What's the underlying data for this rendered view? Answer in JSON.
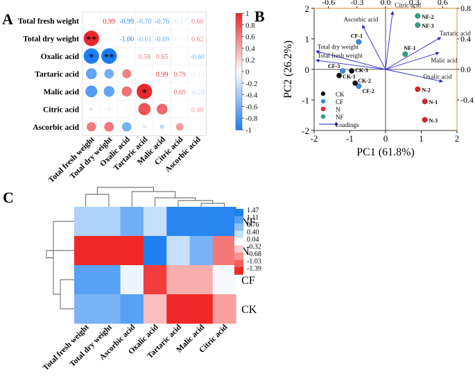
{
  "panels": {
    "a": "A",
    "b": "B",
    "c": "C"
  },
  "chart_data": [
    {
      "panel": "A",
      "type": "heatmap",
      "title": "",
      "variables": [
        "Total fresh weight",
        "Total dry weight",
        "Oxalic acid",
        "Tartaric acid",
        "Malic acid",
        "Citric acid",
        "Ascorbic acid"
      ],
      "correlations": [
        [
          null,
          0.99,
          -0.99,
          -0.7,
          -0.76,
          -0.17,
          0.6
        ],
        [
          0.99,
          null,
          -1.0,
          -0.61,
          -0.69,
          -0.069,
          0.62
        ],
        [
          -0.99,
          -1.0,
          null,
          0.58,
          0.65,
          0.031,
          -0.6
        ],
        [
          -0.7,
          -0.61,
          0.58,
          null,
          0.99,
          0.79,
          -0.14
        ],
        [
          -0.76,
          -0.69,
          0.65,
          0.99,
          null,
          0.69,
          -0.28
        ],
        [
          -0.17,
          -0.069,
          0.031,
          0.79,
          0.69,
          null,
          0.48
        ],
        [
          0.6,
          0.62,
          -0.6,
          -0.14,
          -0.28,
          0.48,
          null
        ]
      ],
      "upper_labels": [
        [
          null,
          "0.99",
          "-0.99",
          "-0.70",
          "-0.76",
          "-0.17",
          "0.60"
        ],
        [
          null,
          null,
          "-1.00",
          "-0.61",
          "-0.69",
          "-0.069",
          "0.62"
        ],
        [
          null,
          null,
          null,
          "0.58",
          "0.65",
          "0.031",
          "-0.60"
        ],
        [
          null,
          null,
          null,
          null,
          "0.99",
          "0.79",
          "-0.14"
        ],
        [
          null,
          null,
          null,
          null,
          null,
          "0.69",
          "-0.28"
        ],
        [
          null,
          null,
          null,
          null,
          null,
          null,
          "0.48"
        ],
        [
          null,
          null,
          null,
          null,
          null,
          null,
          null
        ]
      ],
      "significance": [
        [
          null,
          null,
          null,
          null,
          null,
          null,
          null
        ],
        [
          "**",
          null,
          null,
          null,
          null,
          null,
          null
        ],
        [
          "*",
          "**",
          null,
          null,
          null,
          null,
          null
        ],
        [
          null,
          null,
          null,
          null,
          null,
          null,
          null
        ],
        [
          null,
          null,
          null,
          "*",
          null,
          null,
          null
        ],
        [
          null,
          null,
          null,
          null,
          null,
          null,
          null
        ],
        [
          null,
          null,
          null,
          null,
          null,
          null,
          null
        ]
      ],
      "colorbar": {
        "range": [
          -1,
          1
        ],
        "ticks": [
          "1",
          "0.8",
          "0.6",
          "0.4",
          "0.2",
          "0",
          "-0.2",
          "-0.4",
          "-0.6",
          "-0.8",
          "-1"
        ]
      },
      "colors": {
        "positive": "#e8262b",
        "negative": "#1c7cf0",
        "neutral": "#ffffff"
      }
    },
    {
      "panel": "B",
      "type": "scatter",
      "xlabel": "PC1 (61.8%)",
      "ylabel": "PC2 (26.2%)",
      "xlim": [
        -2,
        2
      ],
      "ylim": [
        -2,
        2
      ],
      "x_ticks": [
        "-2",
        "-1",
        "0",
        "1",
        "2"
      ],
      "y_ticks": [
        "-2",
        "-1",
        "0",
        "1",
        "2"
      ],
      "top_ticks": [
        "-0.6",
        "-0.3",
        "0.0",
        "0.3",
        "0.6"
      ],
      "right_ticks": [
        "0.8",
        "0.4",
        "0.0",
        "-0.4"
      ],
      "points": [
        {
          "label": "CF-1",
          "x": -0.75,
          "y": 0.9,
          "group": "CF"
        },
        {
          "label": "CF-2",
          "x": -0.75,
          "y": -0.55,
          "group": "CF"
        },
        {
          "label": "CF-3",
          "x": -1.2,
          "y": -0.05,
          "group": "CF"
        },
        {
          "label": "CK-1",
          "x": -1.3,
          "y": -0.2,
          "group": "CK"
        },
        {
          "label": "CK-2",
          "x": -0.85,
          "y": -0.45,
          "group": "CK"
        },
        {
          "label": "CK-3",
          "x": -0.95,
          "y": -0.05,
          "group": "CK"
        },
        {
          "label": "N-1",
          "x": 1.1,
          "y": -1.05,
          "group": "N"
        },
        {
          "label": "N-2",
          "x": 0.9,
          "y": -0.65,
          "group": "N"
        },
        {
          "label": "N-3",
          "x": 1.1,
          "y": -1.65,
          "group": "N"
        },
        {
          "label": "NF-1",
          "x": 0.55,
          "y": 0.5,
          "group": "NF"
        },
        {
          "label": "NF-2",
          "x": 0.9,
          "y": 1.75,
          "group": "NF"
        },
        {
          "label": "NF-3",
          "x": 0.9,
          "y": 1.45,
          "group": "NF"
        }
      ],
      "loadings": [
        {
          "label": "Citric acid",
          "x": 0.2,
          "y": 1.9
        },
        {
          "label": "Ascorbic acid",
          "x": -0.65,
          "y": 1.45
        },
        {
          "label": "Total dry weight",
          "x": -1.95,
          "y": 0.6
        },
        {
          "label": "Total fresh weight",
          "x": -1.95,
          "y": 0.3
        },
        {
          "label": "Tartaric acid",
          "x": 1.55,
          "y": 1.05
        },
        {
          "label": "Malic acid",
          "x": 1.5,
          "y": 0.55
        },
        {
          "label": "Oxalic acid",
          "x": 1.6,
          "y": -0.4
        }
      ],
      "legend": [
        {
          "name": "CK",
          "color": "#111111"
        },
        {
          "name": "CF",
          "color": "#2f8fe6"
        },
        {
          "name": "N",
          "color": "#e02020"
        },
        {
          "name": "NF",
          "color": "#2aa186"
        },
        {
          "name": "Loadings",
          "color": "#2222cc"
        }
      ],
      "legend_position": "bottom-left"
    },
    {
      "panel": "C",
      "type": "heatmap",
      "rows": [
        "NF",
        "N",
        "CF",
        "CK"
      ],
      "columns": [
        "Total fresh weight",
        "Total dry weight",
        "Ascorbic acid",
        "Oxalic acid",
        "Tartaric acid",
        "Malic acid",
        "Citric acid"
      ],
      "values": [
        [
          0.55,
          0.55,
          0.95,
          0.4,
          1.4,
          1.4,
          1.4
        ],
        [
          -1.39,
          -1.39,
          -1.39,
          1.47,
          0.4,
          0.9,
          -0.85
        ],
        [
          1.1,
          1.1,
          0.15,
          -1.25,
          -0.5,
          -0.5,
          0.1
        ],
        [
          0.9,
          0.9,
          1.1,
          -0.4,
          -1.39,
          -1.39,
          -0.6
        ]
      ],
      "colorbar_ticks": [
        "1.47",
        "1.11",
        "0.76",
        "0.40",
        "0.04",
        "-0.32",
        "-0.68",
        "-1.03",
        "-1.39"
      ],
      "range": [
        -1.39,
        1.47
      ],
      "colors": {
        "low": "#f02828",
        "mid": "#ffffff",
        "high": "#1e80f0"
      }
    }
  ]
}
